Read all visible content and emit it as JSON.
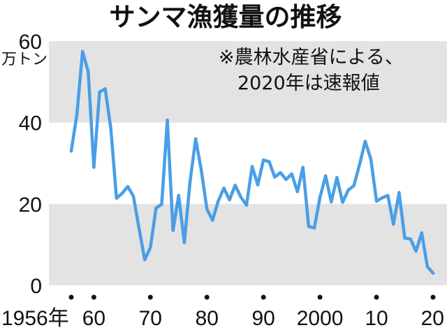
{
  "chart_data": {
    "type": "line",
    "title": "サンマ漁獲量の推移",
    "ylabel": "万トン",
    "note": [
      "※農林水産省による、",
      "2020年は速報値"
    ],
    "ylim": [
      0,
      60
    ],
    "yticks": [
      0,
      20,
      40,
      60
    ],
    "xlim": [
      1956,
      2020
    ],
    "xticks": [
      {
        "x": 1956,
        "label": "1956年"
      },
      {
        "x": 1960,
        "label": "60"
      },
      {
        "x": 1970,
        "label": "70"
      },
      {
        "x": 1980,
        "label": "80"
      },
      {
        "x": 1990,
        "label": "90"
      },
      {
        "x": 2000,
        "label": "2000"
      },
      {
        "x": 2010,
        "label": "10"
      },
      {
        "x": 2020,
        "label": "20"
      }
    ],
    "bands": [
      [
        0,
        20
      ],
      [
        40,
        60
      ]
    ],
    "colors": {
      "line": "#4a9ee6",
      "band": "#e3e3e3"
    },
    "series": [
      {
        "x": [
          1956,
          1957,
          1958,
          1959,
          1960,
          1961,
          1962,
          1963,
          1964,
          1965,
          1966,
          1967,
          1968,
          1969,
          1970,
          1971,
          1972,
          1973,
          1974,
          1975,
          1976,
          1977,
          1978,
          1979,
          1980,
          1981,
          1982,
          1983,
          1984,
          1985,
          1986,
          1987,
          1988,
          1989,
          1990,
          1991,
          1992,
          1993,
          1994,
          1995,
          1996,
          1997,
          1998,
          1999,
          2000,
          2001,
          2002,
          2003,
          2004,
          2005,
          2006,
          2007,
          2008,
          2009,
          2010,
          2011,
          2012,
          2013,
          2014,
          2015,
          2016,
          2017,
          2018,
          2019,
          2020
        ],
        "values": [
          33,
          42,
          57.5,
          52.5,
          29,
          47.5,
          48.3,
          38.5,
          21.4,
          22.6,
          24.3,
          21.9,
          14,
          6.3,
          9.3,
          19,
          19.9,
          40.6,
          13.5,
          22.1,
          10.5,
          25.3,
          36,
          28.3,
          18.7,
          16.0,
          20.7,
          23.9,
          21,
          24.6,
          21.7,
          19.7,
          29.2,
          24.7,
          30.8,
          30.4,
          26.6,
          27.7,
          26.0,
          27.4,
          23,
          29,
          14.5,
          14.1,
          21.6,
          26.9,
          20.5,
          26.5,
          20.4,
          23.4,
          24.5,
          29.7,
          35.4,
          31,
          20.7,
          21.5,
          22.1,
          15,
          22.8,
          11.6,
          11.4,
          8.4,
          12.9,
          4.6,
          3
        ]
      }
    ]
  }
}
